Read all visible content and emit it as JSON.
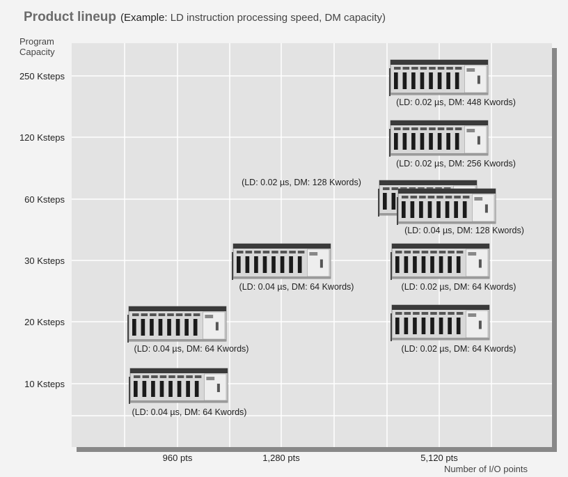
{
  "header": {
    "title": "Product lineup",
    "subtitle_open": "(",
    "subtitle_label": "Example:",
    "subtitle_rest": " LD instruction processing speed, DM capacity)"
  },
  "chart_data": {
    "type": "scatter",
    "title": "Product lineup",
    "subtitle": "(Example: LD instruction processing speed, DM capacity)",
    "ylabel": "Program Capacity",
    "xlabel": "Number of I/O points",
    "y_ticks": [
      "250 Ksteps",
      "120 Ksteps",
      "60 Ksteps",
      "30 Ksteps",
      "20 Ksteps",
      "10 Ksteps"
    ],
    "x_ticks": [
      "960 pts",
      "1,280 pts",
      "5,120 pts"
    ],
    "grid": true,
    "points": [
      {
        "x": "960 pts",
        "y": "10 Ksteps",
        "label": "(LD: 0.04 µs, DM: 64 Kwords)"
      },
      {
        "x": "960 pts",
        "y": "20 Ksteps",
        "label": "(LD: 0.04 µs, DM: 64 Kwords)"
      },
      {
        "x": "1,280 pts",
        "y": "30 Ksteps",
        "label": "(LD: 0.04 µs, DM: 64 Kwords)"
      },
      {
        "x": "5,120 pts",
        "y": "20 Ksteps",
        "label": "(LD: 0.02 µs, DM: 64 Kwords)"
      },
      {
        "x": "5,120 pts",
        "y": "30 Ksteps",
        "label": "(LD: 0.02 µs, DM: 64 Kwords)"
      },
      {
        "x": "5,120 pts",
        "y": "60 Ksteps",
        "label": "(LD: 0.04 µs, DM: 128 Kwords)"
      },
      {
        "x": "5,120 pts",
        "y": "60 Ksteps",
        "label": "(LD: 0.02 µs, DM: 128 Kwords)"
      },
      {
        "x": "5,120 pts",
        "y": "120 Ksteps",
        "label": "(LD: 0.02 µs, DM: 256 Kwords)"
      },
      {
        "x": "5,120 pts",
        "y": "250 Ksteps",
        "label": "(LD: 0.02 µs, DM: 448 Kwords)"
      }
    ]
  },
  "colors": {
    "page_background": "#f3f3f3",
    "plot_background": "#e3e3e3",
    "plot_shadow": "#888888",
    "gridline": "#ffffff",
    "title": "#6b6b6b",
    "module_body": "#d8d8d8",
    "module_slot": "#1a1a1a"
  },
  "icons": [
    "plc-rack-icon"
  ]
}
